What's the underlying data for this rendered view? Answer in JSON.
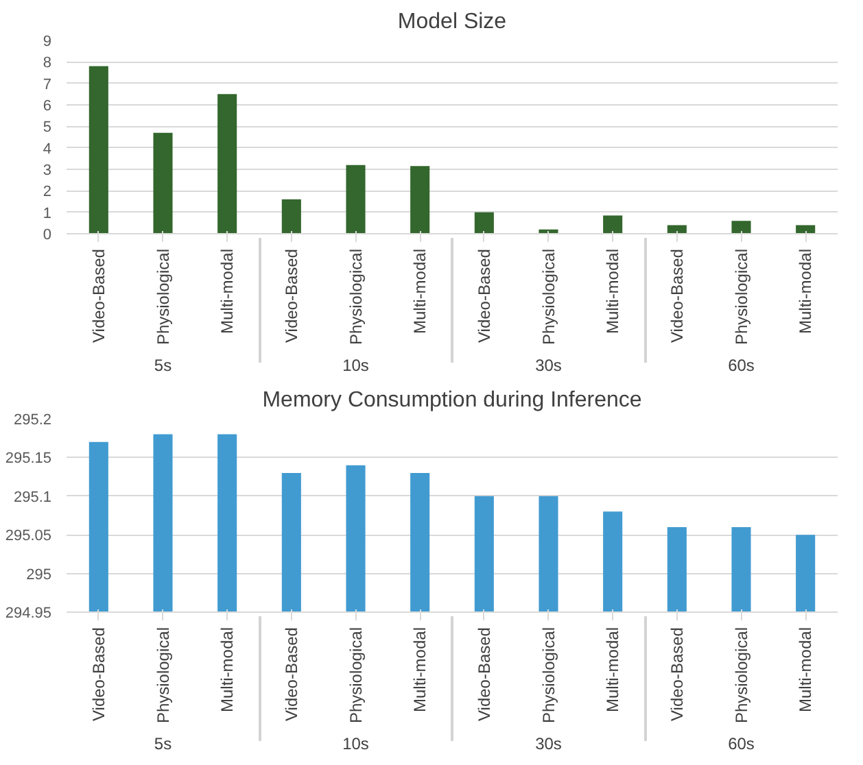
{
  "chart_data": [
    {
      "type": "bar",
      "title": "Model Size",
      "categories": [
        "Video-Based",
        "Physiological",
        "Multi-modal",
        "Video-Based",
        "Physiological",
        "Multi-modal",
        "Video-Based",
        "Physiological",
        "Multi-modal",
        "Video-Based",
        "Physiological",
        "Multi-modal"
      ],
      "annotations": [
        "5s",
        "10s",
        "30s",
        "60s"
      ],
      "values": [
        7.8,
        4.7,
        6.5,
        1.6,
        3.2,
        3.15,
        1.0,
        0.2,
        0.85,
        0.4,
        0.6,
        0.4
      ],
      "color": "#33672d",
      "ylim": [
        0,
        9
      ],
      "yticks": [
        0,
        1,
        2,
        3,
        4,
        5,
        6,
        7,
        8,
        9
      ],
      "grid": "y"
    },
    {
      "type": "bar",
      "title": "Memory Consumption during Inference",
      "categories": [
        "Video-Based",
        "Physiological",
        "Multi-modal",
        "Video-Based",
        "Physiological",
        "Multi-modal",
        "Video-Based",
        "Physiological",
        "Multi-modal",
        "Video-Based",
        "Physiological",
        "Multi-modal"
      ],
      "annotations": [
        "5s",
        "10s",
        "30s",
        "60s"
      ],
      "values": [
        295.17,
        295.18,
        295.18,
        295.13,
        295.14,
        295.13,
        295.1,
        295.1,
        295.08,
        295.06,
        295.06,
        295.05
      ],
      "color": "#419bd1",
      "ylim": [
        294.95,
        295.2
      ],
      "yticks": [
        294.95,
        295,
        295.05,
        295.1,
        295.15,
        295.2
      ],
      "grid": "y"
    }
  ]
}
